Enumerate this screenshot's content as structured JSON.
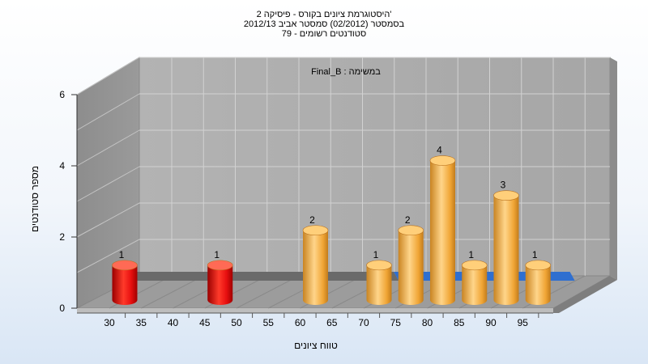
{
  "chart_data": {
    "type": "bar",
    "title_lines": [
      "היסטוגרמת ציונים בקורס - פיסיקה 2'",
      "בסמסטר  (02/2012)  סמסטר אביב 2012/13",
      "סטודנטים רשומים - 79"
    ],
    "subtitle": "Final_B : במשימה",
    "xlabel": "טווח ציונים",
    "ylabel": "מספר סטודנטים",
    "x_ticks": [
      "30",
      "35",
      "40",
      "45",
      "50",
      "55",
      "60",
      "65",
      "70",
      "75",
      "80",
      "85",
      "90",
      "95"
    ],
    "y_ticks": [
      "0",
      "2",
      "4",
      "6"
    ],
    "ylim": [
      0,
      6
    ],
    "bars": [
      {
        "x": 30,
        "value": 1,
        "color": "red"
      },
      {
        "x": 45,
        "value": 1,
        "color": "red"
      },
      {
        "x": 60,
        "value": 2,
        "color": "orange"
      },
      {
        "x": 70,
        "value": 1,
        "color": "orange"
      },
      {
        "x": 75,
        "value": 2,
        "color": "orange"
      },
      {
        "x": 80,
        "value": 4,
        "color": "orange"
      },
      {
        "x": 85,
        "value": 1,
        "color": "orange"
      },
      {
        "x": 90,
        "value": 3,
        "color": "orange"
      },
      {
        "x": 95,
        "value": 1,
        "color": "orange"
      }
    ],
    "colors": {
      "red_bar": "#e01010",
      "orange_bar": "#f0a030",
      "ribbon_blue": "#2f6fd0",
      "ribbon_gray": "#6a6a6a",
      "wall": "#a9a9a9",
      "floor": "#9e9e9e"
    },
    "grid": true
  }
}
